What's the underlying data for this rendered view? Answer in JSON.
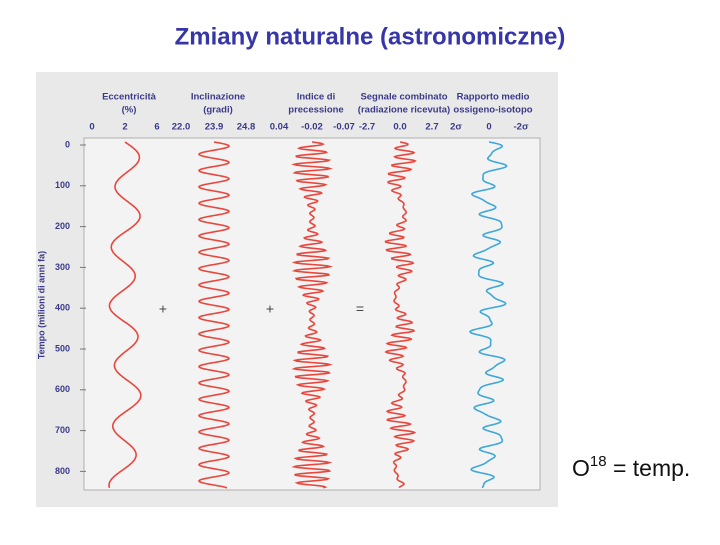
{
  "title": "Zmiany naturalne (astronomiczne)",
  "figure": {
    "columns": [
      {
        "header": [
          "Eccentricità",
          "(%)"
        ],
        "ticks": [
          "0",
          "2",
          "6"
        ]
      },
      {
        "header": [
          "Inclinazione",
          "(gradi)"
        ],
        "ticks": [
          "22.0",
          "23.9",
          "24.8"
        ]
      },
      {
        "header": [
          "Indice di",
          "precessione"
        ],
        "ticks": [
          "0.04",
          "-0.02",
          "-0.07"
        ]
      },
      {
        "header": [
          "Segnale combinato",
          "(radiazione ricevuta)"
        ],
        "ticks": [
          "-2.7",
          "0.0",
          "2.7"
        ]
      },
      {
        "header": [
          "Rapporto medio",
          "ossigeno-isotopo"
        ],
        "ticks": [
          "2σ",
          "0",
          "-2σ"
        ]
      }
    ],
    "y_axis_label": "Tempo (milioni di anni fa)",
    "y_ticks": [
      "0",
      "100",
      "200",
      "300",
      "400",
      "500",
      "600",
      "700",
      "800"
    ],
    "operators": [
      "+",
      "+",
      "="
    ]
  },
  "caption": {
    "base": "O",
    "sup": "18",
    "rest": " = temp."
  }
}
